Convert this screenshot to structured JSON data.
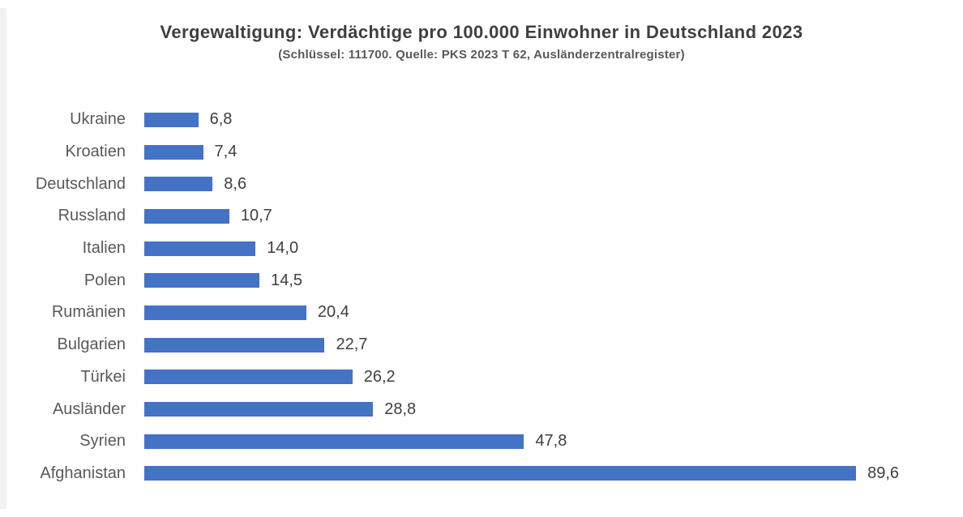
{
  "header": {
    "title": "Vergewaltigung: Verdächtige pro 100.000 Einwohner in Deutschland 2023",
    "subtitle": "(Schlüssel: 111700. Quelle: PKS 2023 T 62, Ausländerzentralregister)"
  },
  "chart_data": {
    "type": "bar",
    "orientation": "horizontal",
    "title": "Vergewaltigung: Verdächtige pro 100.000 Einwohner in Deutschland 2023",
    "subtitle": "(Schlüssel: 111700. Quelle: PKS 2023 T 62, Ausländerzentralregister)",
    "categories": [
      "Ukraine",
      "Kroatien",
      "Deutschland",
      "Russland",
      "Italien",
      "Polen",
      "Rumänien",
      "Bulgarien",
      "Türkei",
      "Ausländer",
      "Syrien",
      "Afghanistan"
    ],
    "values": [
      6.8,
      7.4,
      8.6,
      10.7,
      14.0,
      14.5,
      20.4,
      22.7,
      26.2,
      28.8,
      47.8,
      89.6
    ],
    "value_labels": [
      "6,8",
      "7,4",
      "8,6",
      "10,7",
      "14,0",
      "14,5",
      "20,4",
      "22,7",
      "26,2",
      "28,8",
      "47,8",
      "89,6"
    ],
    "xlabel": "",
    "ylabel": "",
    "xlim": [
      0,
      92
    ],
    "grid": false,
    "legend": false,
    "data_labels": true,
    "bar_color": "#4472C4",
    "category_label_color": "#595959",
    "value_label_color": "#3f3f3f",
    "title_color": "#3f3f3f",
    "background_color": "#ffffff"
  }
}
